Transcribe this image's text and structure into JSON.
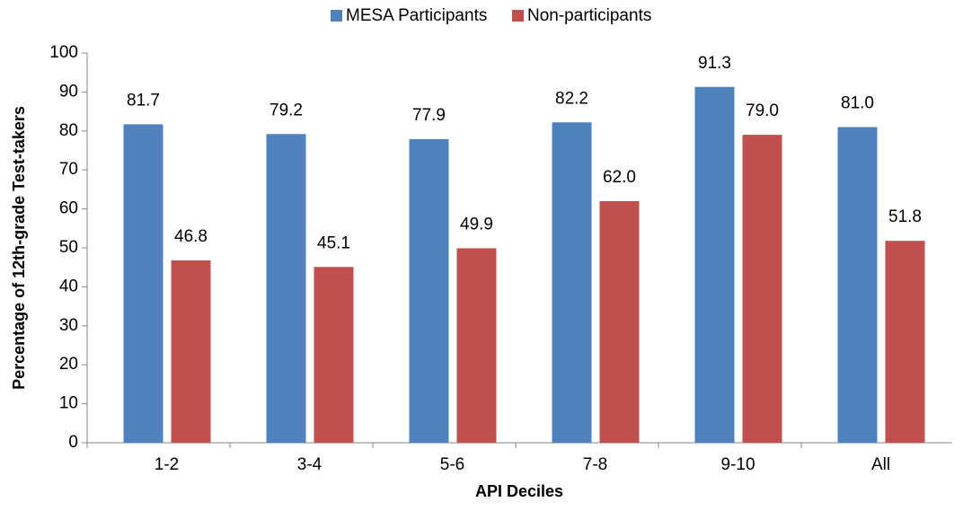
{
  "chart_data": {
    "type": "bar",
    "categories": [
      "1-2",
      "3-4",
      "5-6",
      "7-8",
      "9-10",
      "All"
    ],
    "series": [
      {
        "name": "MESA Participants",
        "color": "#4f81bd",
        "values": [
          81.7,
          79.2,
          77.9,
          82.2,
          91.3,
          81.0
        ],
        "value_labels": [
          "81.7",
          "79.2",
          "77.9",
          "82.2",
          "91.3",
          "81.0"
        ]
      },
      {
        "name": "Non-participants",
        "color": "#c0504d",
        "values": [
          46.8,
          45.1,
          49.9,
          62.0,
          79.0,
          51.8
        ],
        "value_labels": [
          "46.8",
          "45.1",
          "49.9",
          "62.0",
          "79.0",
          "51.8"
        ]
      }
    ],
    "xlabel": "API Deciles",
    "ylabel": "Percentage of 12th-grade Test-takers",
    "ylim": [
      0,
      100
    ],
    "yticks": [
      0,
      10,
      20,
      30,
      40,
      50,
      60,
      70,
      80,
      90,
      100
    ],
    "grid": false,
    "legend": "top"
  }
}
